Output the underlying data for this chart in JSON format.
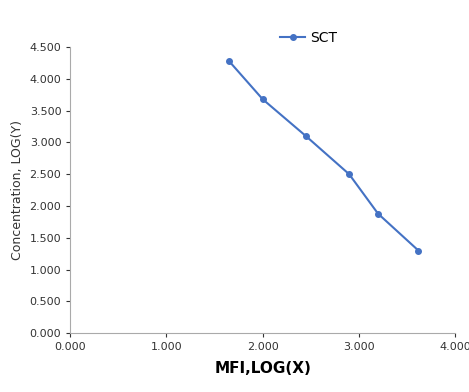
{
  "x": [
    1.65,
    2.0,
    2.45,
    2.9,
    3.2,
    3.62
  ],
  "y": [
    4.28,
    3.68,
    3.1,
    2.5,
    1.88,
    1.3
  ],
  "line_color": "#4472C4",
  "marker": "o",
  "marker_size": 4,
  "legend_label": "SCT",
  "xlabel": "MFI,LOG(X)",
  "ylabel": "Concentration, LOG(Y)",
  "xlim": [
    0.0,
    4.0
  ],
  "ylim": [
    0.0,
    4.5
  ],
  "xticks": [
    0.0,
    1.0,
    2.0,
    3.0,
    4.0
  ],
  "yticks": [
    0.0,
    0.5,
    1.0,
    1.5,
    2.0,
    2.5,
    3.0,
    3.5,
    4.0,
    4.5
  ],
  "background_color": "#ffffff",
  "xlabel_fontsize": 11,
  "ylabel_fontsize": 9,
  "tick_fontsize": 8,
  "legend_fontsize": 10,
  "line_width": 1.5,
  "spine_color": "#aaaaaa",
  "tick_color": "#333333"
}
